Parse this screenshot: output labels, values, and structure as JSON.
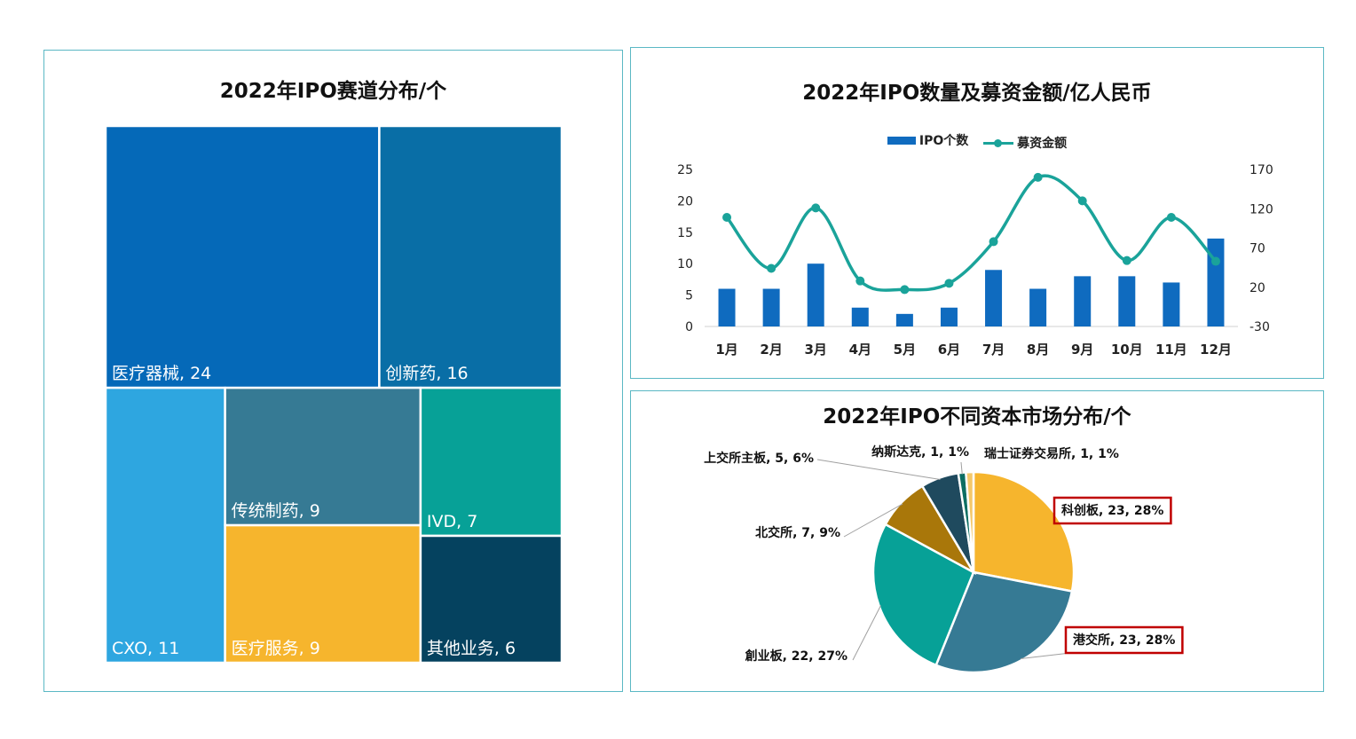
{
  "colors": {
    "panel_border": "#5bb8c4",
    "bar": "#0f6bbf",
    "line": "#1aa39a",
    "highlight_box": "#c00000"
  },
  "chart_data": [
    {
      "type": "treemap",
      "title": "2022年IPO赛道分布/个",
      "items": [
        {
          "name": "医疗器械",
          "value": 24,
          "label": "医疗器械, 24",
          "color": "#0569b8"
        },
        {
          "name": "创新药",
          "value": 16,
          "label": "创新药, 16",
          "color": "#096ea6"
        },
        {
          "name": "CXO",
          "value": 11,
          "label": "CXO, 11",
          "color": "#2ea6e0"
        },
        {
          "name": "传统制药",
          "value": 9,
          "label": "传统制药, 9",
          "color": "#367a94"
        },
        {
          "name": "医疗服务",
          "value": 9,
          "label": "医疗服务, 9",
          "color": "#f6b52d"
        },
        {
          "name": "IVD",
          "value": 7,
          "label": "IVD, 7",
          "color": "#07a197"
        },
        {
          "name": "其他业务",
          "value": 6,
          "label": "其他业务, 6",
          "color": "#05425f"
        }
      ]
    },
    {
      "type": "bar+line",
      "title": "2022年IPO数量及募资金额/亿人民币",
      "categories": [
        "1月",
        "2月",
        "3月",
        "4月",
        "5月",
        "6月",
        "7月",
        "8月",
        "9月",
        "10月",
        "11月",
        "12月"
      ],
      "series": [
        {
          "name": "IPO个数",
          "type": "bar",
          "axis": "left",
          "values": [
            6,
            6,
            10,
            3,
            2,
            3,
            9,
            6,
            8,
            8,
            7,
            14
          ]
        },
        {
          "name": "募资金额",
          "type": "line",
          "axis": "right",
          "values": [
            109,
            44,
            121,
            28,
            17,
            25,
            78,
            160,
            130,
            54,
            109,
            53
          ]
        }
      ],
      "y_left": {
        "ticks": [
          "0",
          "5",
          "10",
          "15",
          "20",
          "25"
        ],
        "ylim": [
          0,
          25
        ]
      },
      "y_right": {
        "ticks": [
          "-30",
          "20",
          "70",
          "120",
          "170"
        ],
        "ylim": [
          -30,
          170
        ]
      },
      "legend": "top"
    },
    {
      "type": "pie",
      "title": "2022年IPO不同资本市场分布/个",
      "slices": [
        {
          "name": "科创板",
          "value": 23,
          "pct": "28%",
          "label": "科创板, 23, 28%",
          "color": "#f6b52d",
          "highlight": true
        },
        {
          "name": "港交所",
          "value": 23,
          "pct": "28%",
          "label": "港交所, 23, 28%",
          "color": "#367a94",
          "highlight": true
        },
        {
          "name": "创业板",
          "value": 22,
          "pct": "27%",
          "label": "創业板, 22, 27%",
          "color": "#07a197",
          "highlight": false
        },
        {
          "name": "北交所",
          "value": 7,
          "pct": "9%",
          "label": "北交所, 7, 9%",
          "color": "#a9770a",
          "highlight": false
        },
        {
          "name": "上交所主板",
          "value": 5,
          "pct": "6%",
          "label": "上交所主板, 5, 6%",
          "color": "#1f4a5e",
          "highlight": false
        },
        {
          "name": "纳斯达克",
          "value": 1,
          "pct": "1%",
          "label": "纳斯达克, 1, 1%",
          "color": "#0c6e63",
          "highlight": false
        },
        {
          "name": "瑞士证券交易所",
          "value": 1,
          "pct": "1%",
          "label": "瑞士证券交易所, 1, 1%",
          "color": "#f4c86a",
          "highlight": false
        }
      ]
    }
  ]
}
